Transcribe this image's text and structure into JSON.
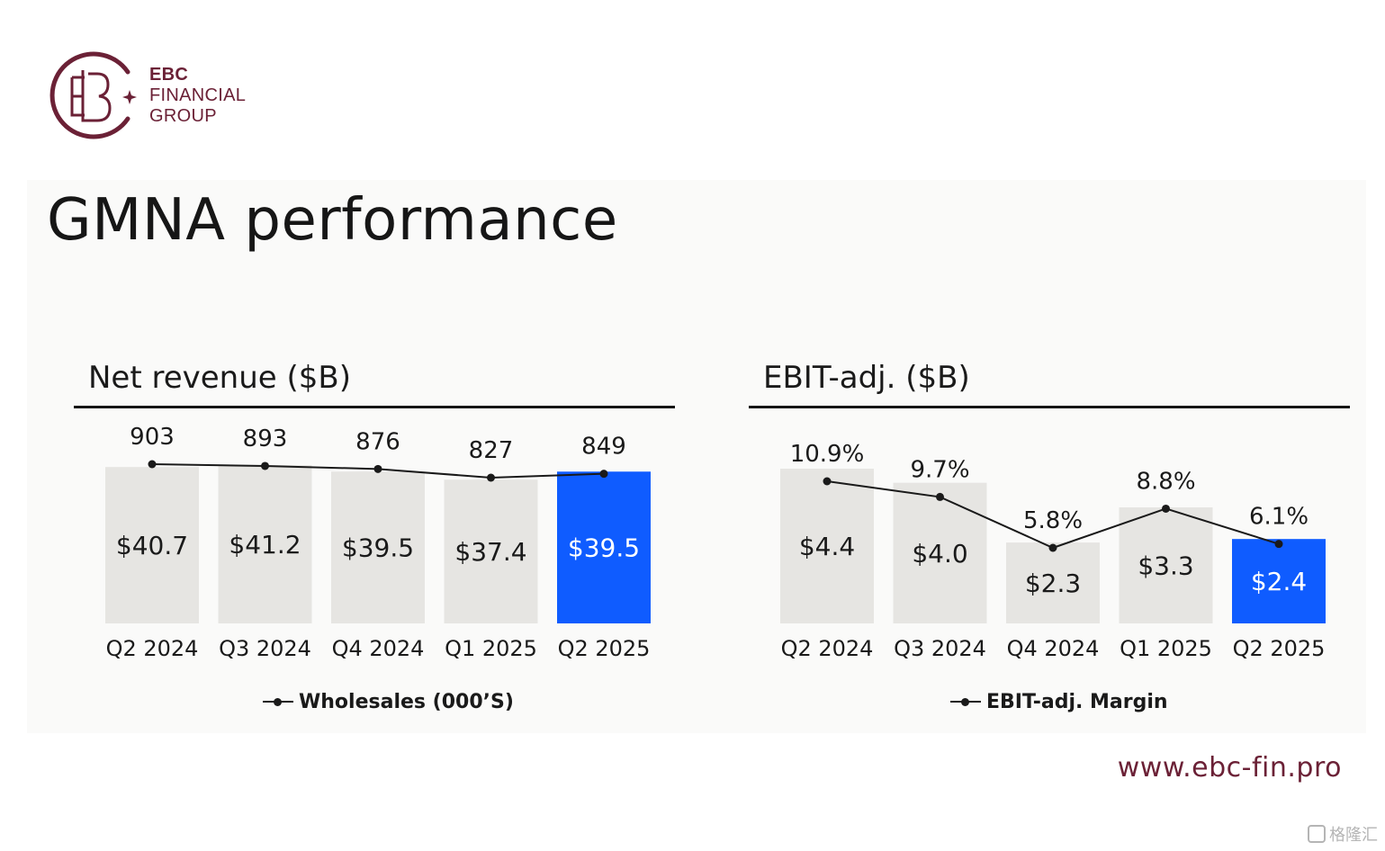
{
  "brand": {
    "logo_lines": [
      "EBC",
      "FINANCIAL",
      "GROUP"
    ],
    "website": "www.ebc-fin.pro",
    "watermark": "格隆汇"
  },
  "colors": {
    "brand": "#6b2136",
    "bar_default": "#e6e5e2",
    "bar_highlight": "#0f5cff",
    "line": "#1a1a1a"
  },
  "slide": {
    "title": "GMNA performance"
  },
  "chart_data": [
    {
      "type": "bar",
      "title": "Net revenue ($B)",
      "categories": [
        "Q2 2024",
        "Q3 2024",
        "Q4 2024",
        "Q1 2025",
        "Q2 2025"
      ],
      "values": [
        40.7,
        41.2,
        39.5,
        37.4,
        39.5
      ],
      "value_labels": [
        "$40.7",
        "$41.2",
        "$39.5",
        "$37.4",
        "$39.5"
      ],
      "highlight_index": 4,
      "line_series": {
        "name": "Wholesales (000’S)",
        "values": [
          903,
          893,
          876,
          827,
          849
        ],
        "labels": [
          "903",
          "893",
          "876",
          "827",
          "849"
        ]
      },
      "grid": false,
      "legend_position": "bottom-center"
    },
    {
      "type": "bar",
      "title": "EBIT-adj. ($B)",
      "categories": [
        "Q2 2024",
        "Q3 2024",
        "Q4 2024",
        "Q1 2025",
        "Q2 2025"
      ],
      "values": [
        4.4,
        4.0,
        2.3,
        3.3,
        2.4
      ],
      "value_labels": [
        "$4.4",
        "$4.0",
        "$2.3",
        "$3.3",
        "$2.4"
      ],
      "highlight_index": 4,
      "line_series": {
        "name": "EBIT-adj. Margin",
        "values": [
          10.9,
          9.7,
          5.8,
          8.8,
          6.1
        ],
        "labels": [
          "10.9%",
          "9.7%",
          "5.8%",
          "8.8%",
          "6.1%"
        ]
      },
      "grid": false,
      "legend_position": "bottom-center"
    }
  ]
}
